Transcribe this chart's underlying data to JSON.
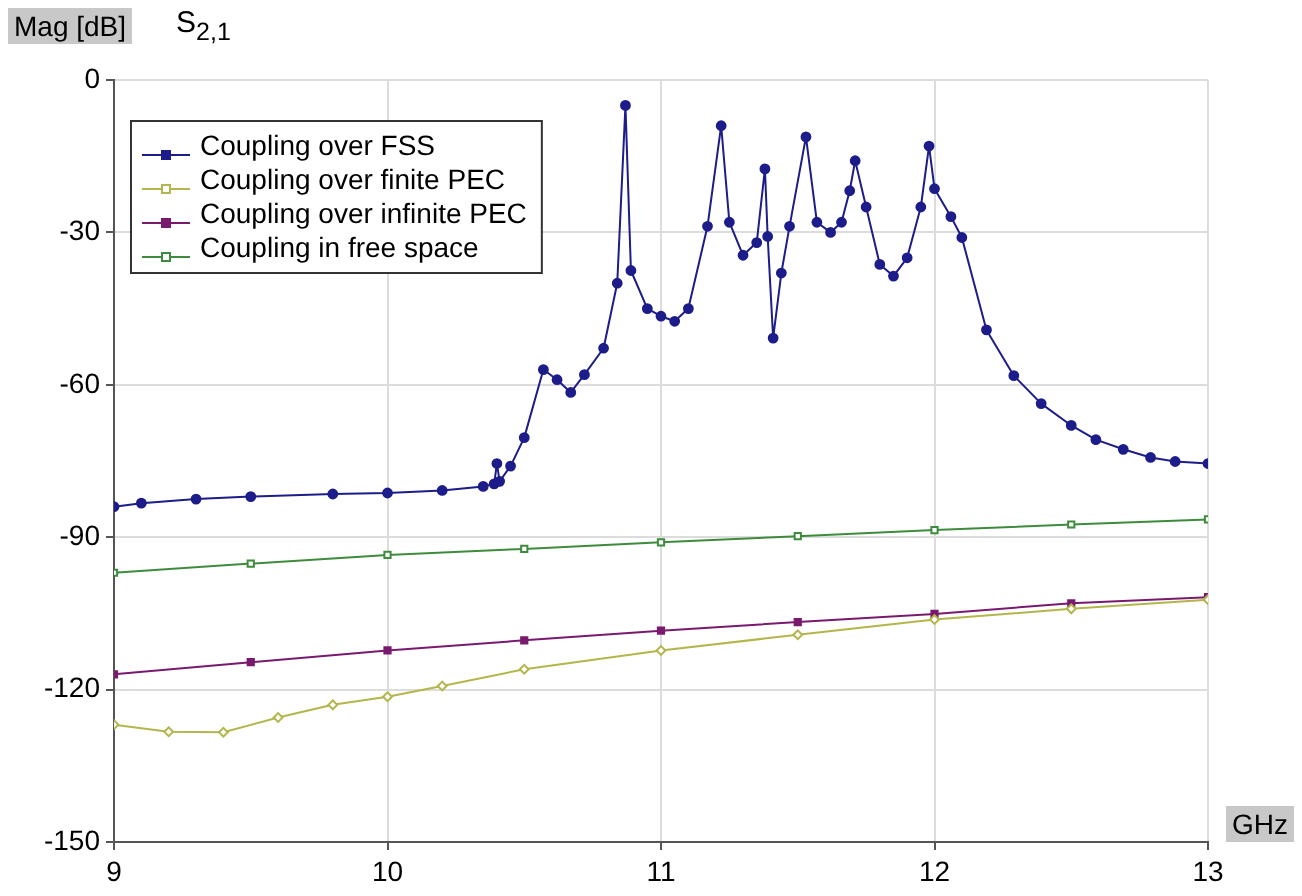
{
  "chart_data": {
    "type": "line",
    "title": "S$_{2,1}$",
    "xlabel": "GHz",
    "ylabel": "Mag [dB]",
    "xlim": [
      9,
      13
    ],
    "ylim": [
      -150,
      0
    ],
    "xticks": [
      9,
      10,
      11,
      12,
      13
    ],
    "yticks": [
      -150,
      -120,
      -90,
      -60,
      -30,
      0
    ],
    "grid": true,
    "legend": "top left",
    "line_style": "solid",
    "series": [
      {
        "name": "Coupling over FSS",
        "color": "#1c1c8a",
        "marker": "circle",
        "x": [
          9.0,
          9.1,
          9.3,
          9.5,
          9.8,
          10.0,
          10.2,
          10.35,
          10.39,
          10.4,
          10.41,
          10.45,
          10.5,
          10.57,
          10.62,
          10.67,
          10.72,
          10.79,
          10.84,
          10.87,
          10.89,
          10.95,
          11.0,
          11.05,
          11.1,
          11.17,
          11.22,
          11.25,
          11.3,
          11.35,
          11.38,
          11.39,
          11.41,
          11.44,
          11.47,
          11.53,
          11.57,
          11.62,
          11.66,
          11.69,
          11.71,
          11.75,
          11.8,
          11.85,
          11.9,
          11.95,
          11.98,
          12.0,
          12.06,
          12.1,
          12.19,
          12.29,
          12.39,
          12.5,
          12.59,
          12.69,
          12.79,
          12.88,
          13.0
        ],
        "values": [
          -84,
          -83.3,
          -82.5,
          -82,
          -81.5,
          -81.3,
          -80.8,
          -80,
          -79.5,
          -75.5,
          -79,
          -76,
          -70.4,
          -57,
          -59,
          -61.5,
          -58,
          -52.8,
          -40,
          -5,
          -37.5,
          -45,
          -46.5,
          -47.5,
          -45,
          -28.8,
          -9,
          -28,
          -34.5,
          -32,
          -17.5,
          -30.8,
          -50.8,
          -38,
          -28.8,
          -11.2,
          -28,
          -30,
          -28,
          -21.8,
          -15.9,
          -25,
          -36.3,
          -38.6,
          -35,
          -25,
          -13,
          -21.4,
          -26.9,
          -31,
          -49.2,
          -58.2,
          -63.7,
          -68,
          -70.8,
          -72.7,
          -74.3,
          -75.1,
          -75.5
        ]
      },
      {
        "name": "Coupling over finite PEC",
        "color": "#b3b64a",
        "marker": "diamond",
        "x": [
          9.0,
          9.2,
          9.4,
          9.6,
          9.8,
          10.0,
          10.2,
          10.5,
          11.0,
          11.5,
          12.0,
          12.5,
          13.0
        ],
        "values": [
          -126.9,
          -128.3,
          -128.4,
          -125.5,
          -123,
          -121.4,
          -119.3,
          -116,
          -112.3,
          -109.2,
          -106.2,
          -104.1,
          -102.3
        ]
      },
      {
        "name": "Coupling over infinite PEC",
        "color": "#7a1a6e",
        "marker": "square",
        "x": [
          9.0,
          9.5,
          10.0,
          10.5,
          11.0,
          11.5,
          12.0,
          12.5,
          13.0
        ],
        "values": [
          -117,
          -114.6,
          -112.3,
          -110.3,
          -108.4,
          -106.7,
          -105.1,
          -103,
          -101.8
        ]
      },
      {
        "name": "Coupling in free space",
        "color": "#3d8c3d",
        "marker": "square_open",
        "x": [
          9.0,
          9.5,
          10.0,
          10.5,
          11.0,
          11.5,
          12.0,
          12.5,
          13.0
        ],
        "values": [
          -97,
          -95.2,
          -93.5,
          -92.3,
          -91,
          -89.8,
          -88.6,
          -87.5,
          -86.5
        ]
      }
    ]
  }
}
